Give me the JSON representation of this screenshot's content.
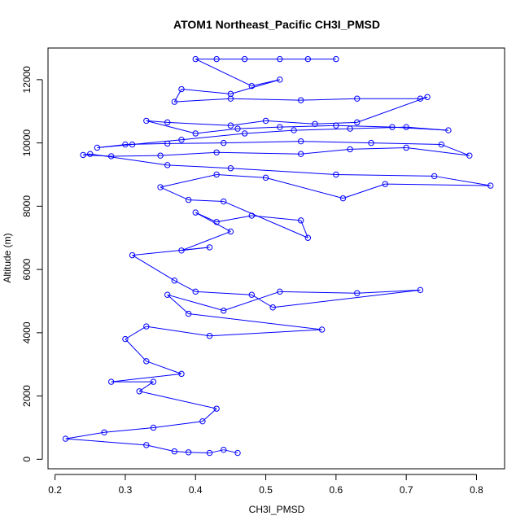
{
  "chart_data": {
    "type": "scatter",
    "title": "ATOM1 Northeast_Pacific CH3I_PMSD",
    "xlabel": "CH3I_PMSD",
    "ylabel": "Altitude (m)",
    "xlim": [
      0.19,
      0.84
    ],
    "ylim": [
      -300,
      13000
    ],
    "xticks": [
      0.2,
      0.3,
      0.4,
      0.5,
      0.6,
      0.7,
      0.8
    ],
    "xtick_labels": [
      "0.2",
      "0.3",
      "0.4",
      "0.5",
      "0.6",
      "0.7",
      "0.8"
    ],
    "yticks": [
      0,
      2000,
      4000,
      6000,
      8000,
      10000,
      12000
    ],
    "ytick_labels": [
      "0",
      "2000",
      "4000",
      "6000",
      "8000",
      "10000",
      "12000"
    ],
    "grid": false,
    "legend": "none",
    "color": "#0000ff",
    "markers": "open circles connected by lines",
    "series": [
      {
        "points": [
          [
            0.46,
            200
          ],
          [
            0.44,
            300
          ],
          [
            0.42,
            200
          ],
          [
            0.39,
            220
          ],
          [
            0.37,
            250
          ],
          [
            0.33,
            450
          ],
          [
            0.215,
            650
          ],
          [
            0.27,
            850
          ],
          [
            0.34,
            1000
          ],
          [
            0.41,
            1200
          ],
          [
            0.43,
            1600
          ],
          [
            0.32,
            2150
          ],
          [
            0.34,
            2450
          ],
          [
            0.28,
            2450
          ],
          [
            0.38,
            2700
          ],
          [
            0.33,
            3100
          ],
          [
            0.3,
            3800
          ],
          [
            0.33,
            4200
          ],
          [
            0.42,
            3900
          ],
          [
            0.58,
            4100
          ],
          [
            0.39,
            4600
          ],
          [
            0.36,
            5200
          ],
          [
            0.44,
            4700
          ],
          [
            0.52,
            5300
          ],
          [
            0.63,
            5250
          ],
          [
            0.72,
            5350
          ],
          [
            0.51,
            4800
          ],
          [
            0.48,
            5200
          ],
          [
            0.4,
            5300
          ],
          [
            0.37,
            5650
          ],
          [
            0.31,
            6450
          ],
          [
            0.42,
            6700
          ],
          [
            0.38,
            6600
          ],
          [
            0.45,
            7200
          ],
          [
            0.4,
            7800
          ],
          [
            0.43,
            7500
          ],
          [
            0.48,
            7700
          ],
          [
            0.55,
            7550
          ],
          [
            0.56,
            7000
          ],
          [
            0.44,
            8150
          ],
          [
            0.39,
            8200
          ],
          [
            0.35,
            8600
          ],
          [
            0.43,
            9000
          ],
          [
            0.5,
            8900
          ],
          [
            0.61,
            8250
          ],
          [
            0.67,
            8700
          ],
          [
            0.82,
            8650
          ],
          [
            0.74,
            8950
          ],
          [
            0.6,
            9000
          ],
          [
            0.45,
            9200
          ],
          [
            0.36,
            9300
          ],
          [
            0.25,
            9650
          ],
          [
            0.24,
            9620
          ],
          [
            0.28,
            9580
          ],
          [
            0.35,
            9600
          ],
          [
            0.43,
            9700
          ],
          [
            0.55,
            9650
          ],
          [
            0.62,
            9800
          ],
          [
            0.7,
            9850
          ],
          [
            0.79,
            9600
          ],
          [
            0.75,
            9950
          ],
          [
            0.65,
            10000
          ],
          [
            0.55,
            10050
          ],
          [
            0.44,
            10000
          ],
          [
            0.36,
            9980
          ],
          [
            0.3,
            9950
          ],
          [
            0.26,
            9850
          ],
          [
            0.31,
            9950
          ],
          [
            0.38,
            10100
          ],
          [
            0.47,
            10300
          ],
          [
            0.54,
            10400
          ],
          [
            0.62,
            10450
          ],
          [
            0.7,
            10500
          ],
          [
            0.76,
            10400
          ],
          [
            0.68,
            10500
          ],
          [
            0.6,
            10550
          ],
          [
            0.52,
            10500
          ],
          [
            0.46,
            10450
          ],
          [
            0.4,
            10300
          ],
          [
            0.33,
            10700
          ],
          [
            0.36,
            10650
          ],
          [
            0.45,
            10550
          ],
          [
            0.5,
            10700
          ],
          [
            0.57,
            10600
          ],
          [
            0.63,
            10650
          ],
          [
            0.73,
            11450
          ],
          [
            0.72,
            11400
          ],
          [
            0.63,
            11400
          ],
          [
            0.55,
            11350
          ],
          [
            0.45,
            11400
          ],
          [
            0.37,
            11300
          ],
          [
            0.38,
            11700
          ],
          [
            0.45,
            11550
          ],
          [
            0.52,
            12000
          ],
          [
            0.48,
            11800
          ],
          [
            0.4,
            12650
          ],
          [
            0.43,
            12650
          ],
          [
            0.47,
            12650
          ],
          [
            0.52,
            12650
          ],
          [
            0.56,
            12650
          ],
          [
            0.6,
            12650
          ]
        ]
      }
    ]
  }
}
